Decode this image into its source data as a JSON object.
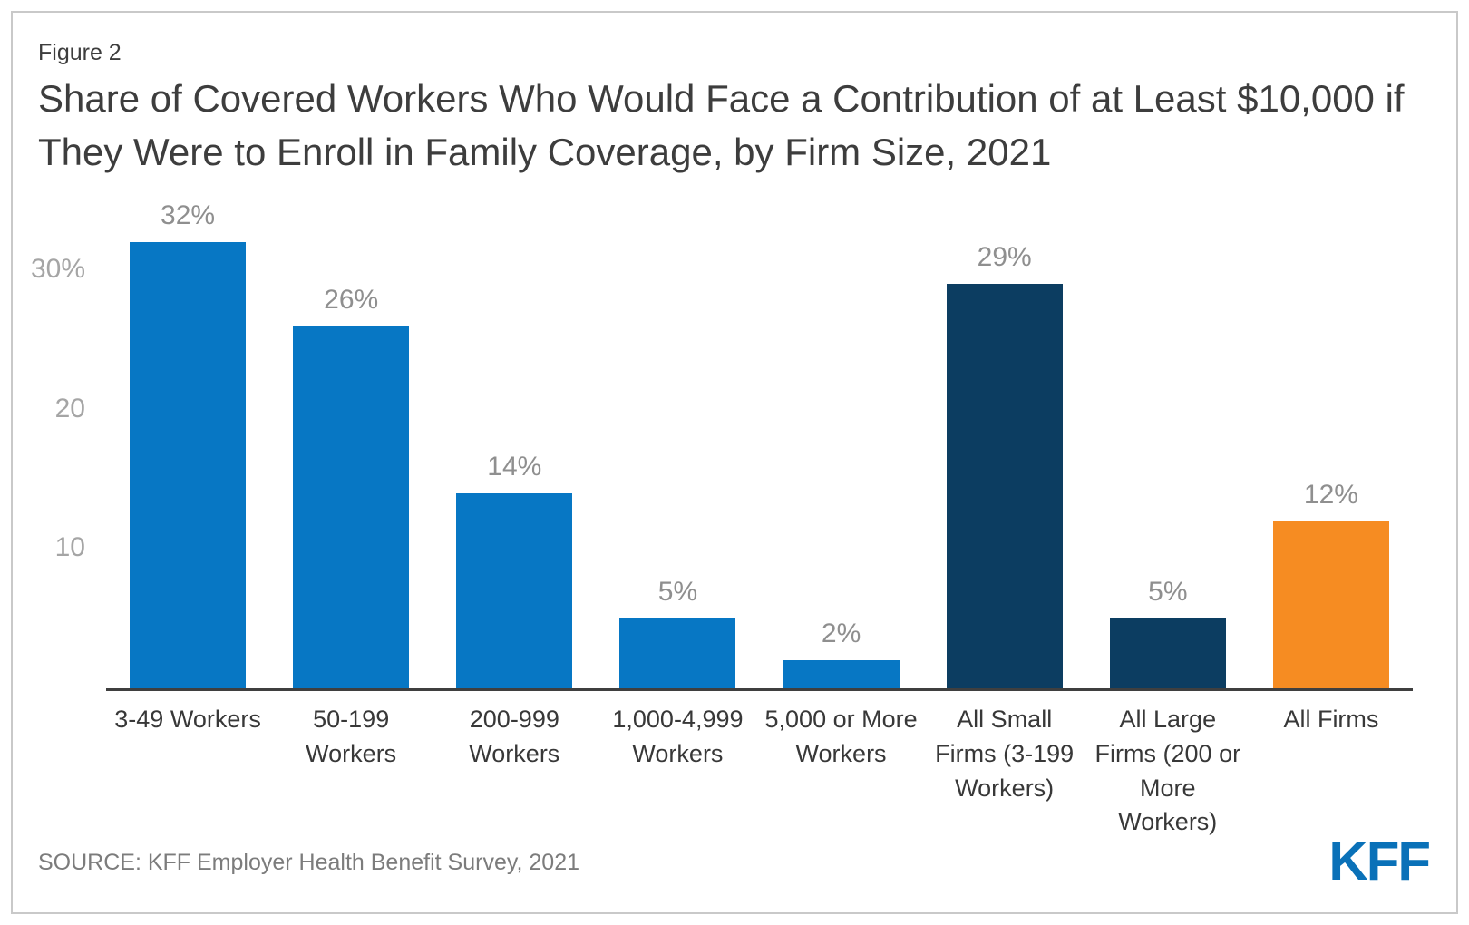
{
  "figure_label": "Figure 2",
  "title": "Share of Covered Workers Who Would Face a Contribution of at Least $10,000 if They Were to Enroll in Family Coverage, by Firm Size, 2021",
  "source": "SOURCE: KFF Employer Health Benefit Survey, 2021",
  "logo_text": "KFF",
  "colors": {
    "bar_blue": "#0777c4",
    "bar_navy": "#0c3d61",
    "bar_orange": "#f68c22",
    "axis_line": "#3f3f3f",
    "tick_text": "#a5a5a5",
    "value_text": "#8f8f8f",
    "category_text": "#383838",
    "logo_blue": "#0a71b8",
    "frame_border": "#c9c9c9"
  },
  "chart_data": {
    "type": "bar",
    "title": "Share of Covered Workers Who Would Face a Contribution of at Least $10,000 if They Were to Enroll in Family Coverage, by Firm Size, 2021",
    "categories": [
      "3-49 Workers",
      "50-199 Workers",
      "200-999 Workers",
      "1,000-4,999 Workers",
      "5,000 or More Workers",
      "All Small Firms (3-199 Workers)",
      "All Large Firms (200 or More Workers)",
      "All Firms"
    ],
    "category_lines": [
      [
        "3-49 Workers"
      ],
      [
        "50-199",
        "Workers"
      ],
      [
        "200-999",
        "Workers"
      ],
      [
        "1,000-4,999",
        "Workers"
      ],
      [
        "5,000 or More",
        "Workers"
      ],
      [
        "All Small",
        "Firms (3-199",
        "Workers)"
      ],
      [
        "All Large",
        "Firms (200 or",
        "More",
        "Workers)"
      ],
      [
        "All Firms"
      ]
    ],
    "values": [
      32,
      26,
      14,
      5,
      2,
      29,
      5,
      12
    ],
    "value_labels": [
      "32%",
      "26%",
      "14%",
      "5%",
      "2%",
      "29%",
      "5%",
      "12%"
    ],
    "bar_colors": [
      "#0777c4",
      "#0777c4",
      "#0777c4",
      "#0777c4",
      "#0777c4",
      "#0c3d61",
      "#0c3d61",
      "#f68c22"
    ],
    "xlabel": "",
    "ylabel": "",
    "ylim": [
      0,
      33
    ],
    "yticks": [
      {
        "value": 30,
        "label": "30%"
      },
      {
        "value": 20,
        "label": "20"
      },
      {
        "value": 10,
        "label": "10"
      }
    ],
    "grid": false,
    "legend": null
  }
}
